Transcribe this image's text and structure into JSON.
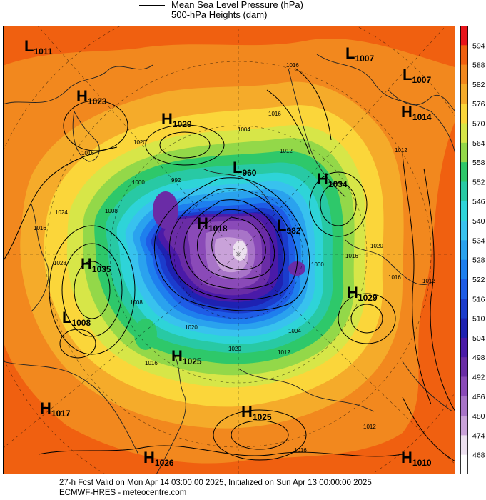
{
  "header": {
    "legend_line1": "Mean Sea Level Pressure (hPa)",
    "legend_line2": "500-hPa Heights (dam)"
  },
  "footer": {
    "line1": "27-h Fcst Valid on Mon Apr 14 03:00:00 2025, Initialized on Sun Apr 13 00:00:00 2025",
    "line2": "ECMWF-HRES - meteocentre.com"
  },
  "colorbar": {
    "values": [
      "594",
      "588",
      "582",
      "576",
      "570",
      "564",
      "558",
      "552",
      "546",
      "540",
      "534",
      "528",
      "522",
      "516",
      "510",
      "504",
      "498",
      "492",
      "486",
      "480",
      "474",
      "468"
    ],
    "colors": [
      "#e8141a",
      "#f06010",
      "#f2881e",
      "#f5ab2a",
      "#fbd63a",
      "#d7e648",
      "#93d849",
      "#2ec86a",
      "#28c9a4",
      "#2ed4d8",
      "#38c2ee",
      "#2aa2ee",
      "#1e7fee",
      "#1e5ce6",
      "#1b3ccc",
      "#1e22b2",
      "#4a1aa8",
      "#6a2ca6",
      "#8a4ab8",
      "#a874c8",
      "#c9a2d9",
      "#ece0ef"
    ],
    "bottom_color": "#ffffff"
  },
  "pressure_systems": [
    {
      "type": "L",
      "value": "1011"
    },
    {
      "type": "L",
      "value": "1007"
    },
    {
      "type": "L",
      "value": "1007"
    },
    {
      "type": "H",
      "value": "1023"
    },
    {
      "type": "H",
      "value": "1029"
    },
    {
      "type": "H",
      "value": "1014"
    },
    {
      "type": "L",
      "value": "960"
    },
    {
      "type": "H",
      "value": "1034"
    },
    {
      "type": "H",
      "value": "1018"
    },
    {
      "type": "L",
      "value": "982"
    },
    {
      "type": "H",
      "value": "1035"
    },
    {
      "type": "H",
      "value": "1029"
    },
    {
      "type": "L",
      "value": "1008"
    },
    {
      "type": "H",
      "value": "1025"
    },
    {
      "type": "H",
      "value": "1017"
    },
    {
      "type": "H",
      "value": "1025"
    },
    {
      "type": "H",
      "value": "1026"
    },
    {
      "type": "H",
      "value": "1010"
    }
  ],
  "isobar_labels": [
    "1016",
    "1016",
    "1016",
    "1020",
    "1004",
    "1012",
    "992",
    "1000",
    "1008",
    "1024",
    "1028",
    "1016",
    "1020",
    "1016",
    "1020",
    "1016",
    "1012",
    "1020",
    "1016",
    "1012",
    "1016",
    "1012",
    "1008",
    "1004",
    "1000",
    "1012"
  ]
}
